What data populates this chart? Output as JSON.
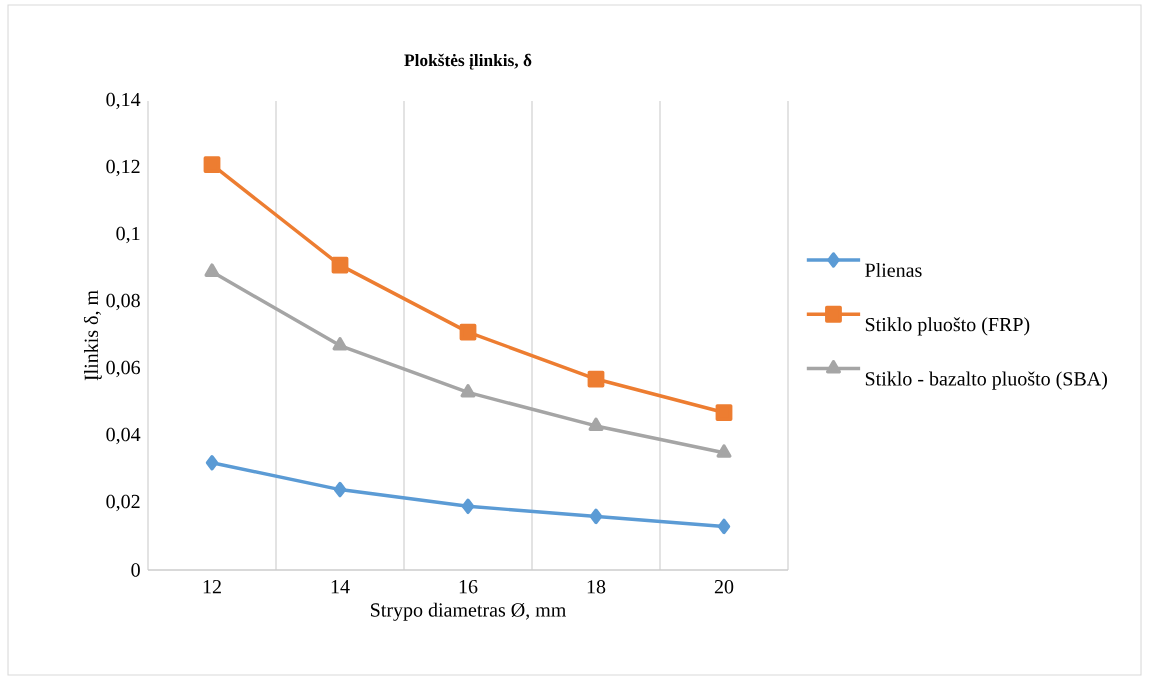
{
  "chart_data": {
    "type": "line",
    "title": "Plokštės įlinkis,  δ",
    "xlabel": "Strypo diametras Ø, mm",
    "ylabel": "Įlinkis δ, m",
    "categories": [
      "12",
      "14",
      "16",
      "18",
      "20"
    ],
    "series": [
      {
        "name": "Plienas",
        "color": "#5b9bd5",
        "marker": "diamond",
        "values": [
          0.032,
          0.024,
          0.019,
          0.016,
          0.013
        ]
      },
      {
        "name": "Stiklo pluošto (FRP)",
        "color": "#ed7d31",
        "marker": "square",
        "values": [
          0.121,
          0.091,
          0.071,
          0.057,
          0.047
        ]
      },
      {
        "name": "Stiklo - bazalto pluošto (SBA)",
        "color": "#a5a5a5",
        "marker": "triangle",
        "values": [
          0.089,
          0.067,
          0.053,
          0.043,
          0.035
        ]
      }
    ],
    "ylim": [
      0,
      0.14
    ],
    "yticks": [
      0,
      {
        "value": 0.02,
        "label": "0,02"
      },
      {
        "value": 0.04,
        "label": "0,04"
      },
      {
        "value": 0.06,
        "label": "0,06"
      },
      {
        "value": 0.08,
        "label": "0,08"
      },
      {
        "value": 0.1,
        "label": "0,1"
      },
      {
        "value": 0.12,
        "label": "0,12"
      },
      {
        "value": 0.14,
        "label": "0,14"
      }
    ],
    "grid": "x",
    "legend": "right",
    "line_style": "solid"
  }
}
